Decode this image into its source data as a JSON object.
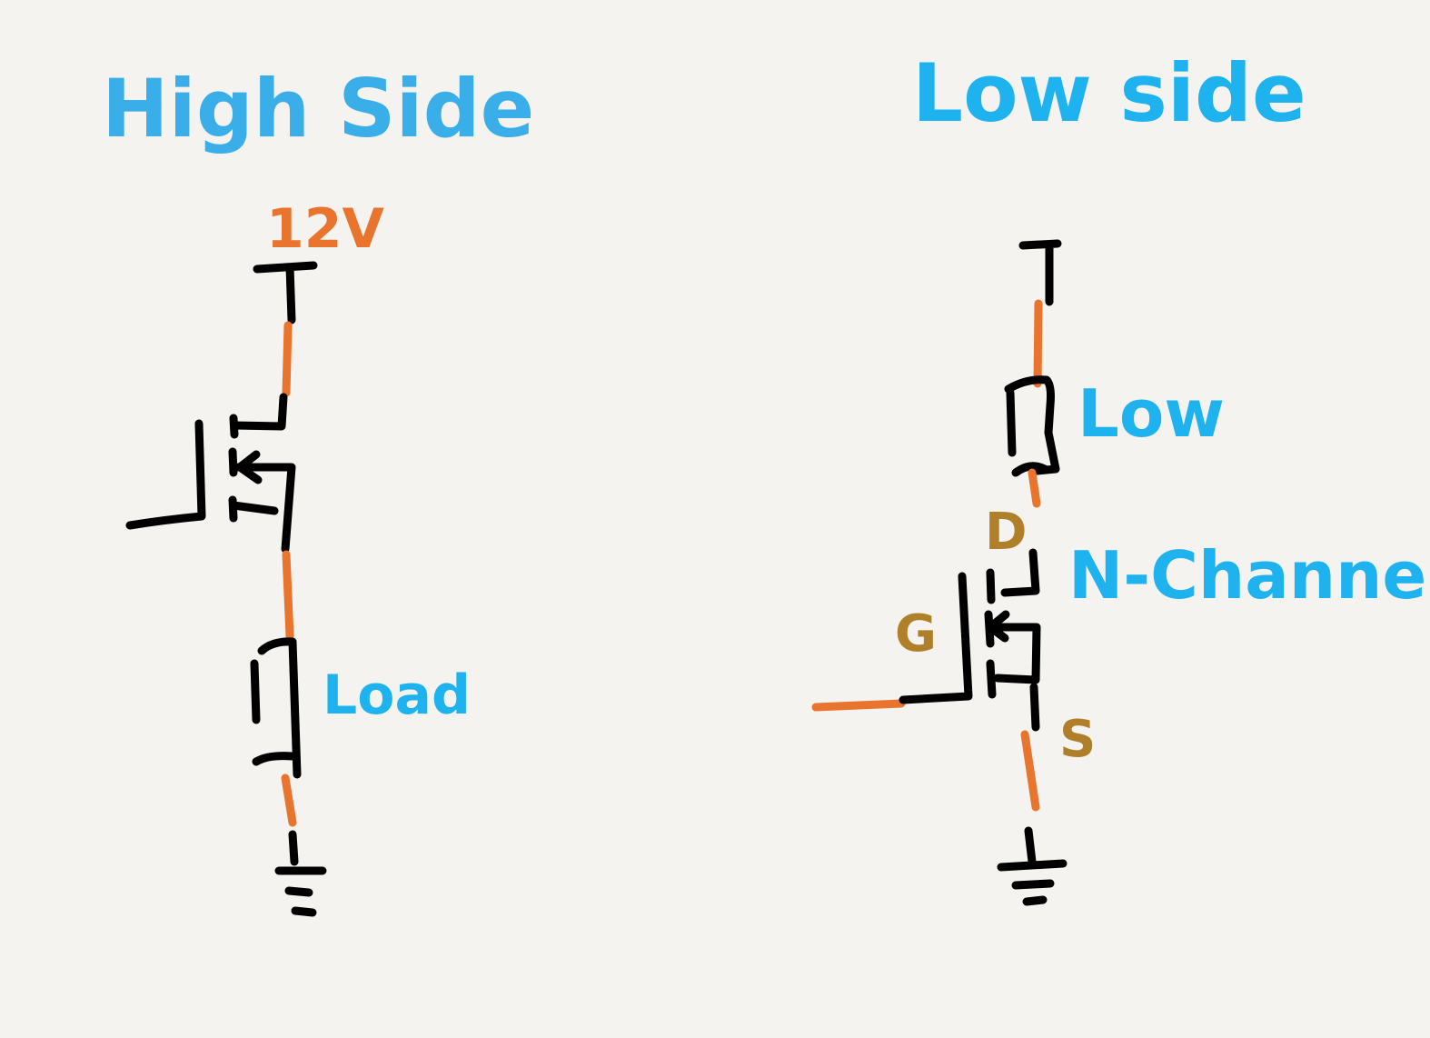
{
  "colors": {
    "background": "#f5f3ef",
    "label_blue": "#1eb2ef",
    "title_blue": "#3aaee8",
    "wire_orange": "#e8742e",
    "pin_gold": "#b07f2a",
    "wire_black": "#000000"
  },
  "high_side": {
    "title": "High Side",
    "supply_label": "12V",
    "load_label": "Load"
  },
  "low_side": {
    "title": "Low side",
    "load_label": "Low",
    "mosfet_label": "N-Channel",
    "pin_drain": "D",
    "pin_gate": "G",
    "pin_source": "S"
  }
}
